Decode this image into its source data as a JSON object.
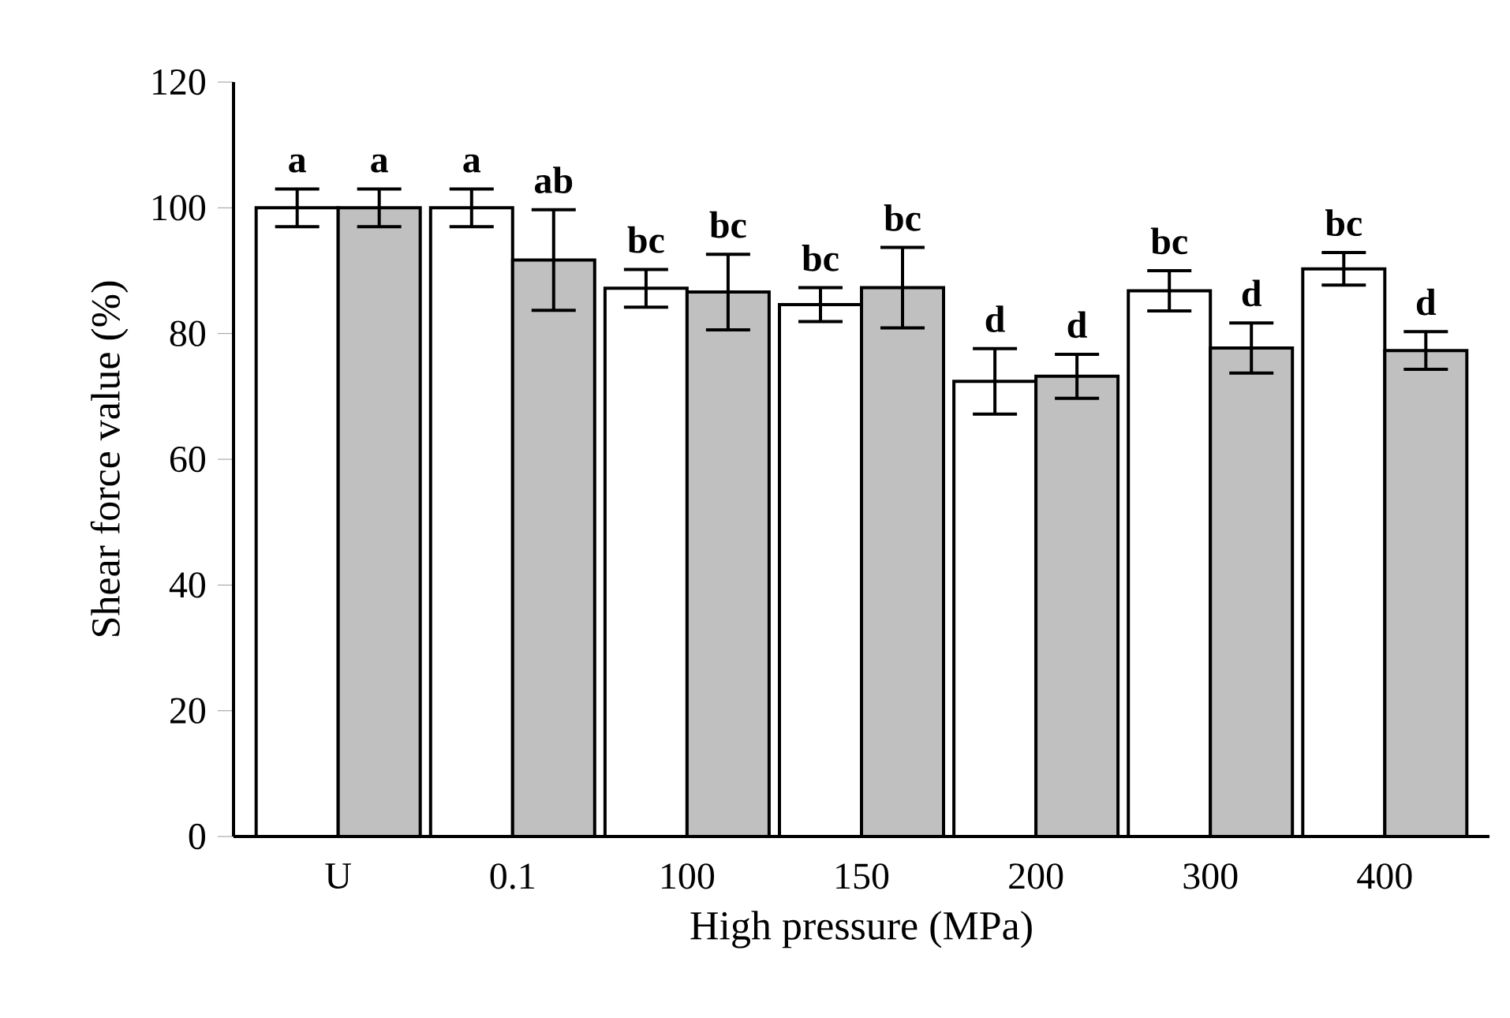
{
  "chart_data": {
    "type": "bar",
    "xlabel": "High pressure (MPa)",
    "ylabel": "Shear force value (%)",
    "categories": [
      "U",
      "0.1",
      "100",
      "150",
      "200",
      "300",
      "400"
    ],
    "series": [
      {
        "color": "#ffffff",
        "values": [
          100,
          100,
          87.2,
          84.6,
          72.4,
          86.8,
          90.3
        ],
        "errors": [
          3,
          3,
          3,
          2.7,
          5.2,
          3.2,
          2.6
        ]
      },
      {
        "color": "#c0c0c0",
        "values": [
          100,
          91.7,
          86.6,
          87.3,
          73.2,
          77.7,
          77.3
        ],
        "errors": [
          3,
          8,
          6,
          6.4,
          3.5,
          4,
          3
        ]
      }
    ],
    "ylim": [
      0,
      120
    ],
    "yticks": [
      0,
      20,
      40,
      60,
      80,
      100,
      120
    ],
    "grid": false,
    "annotations": [
      "a",
      "a",
      "a",
      "ab",
      "bc",
      "bc",
      "bc",
      "bc",
      "d",
      "d",
      "bc",
      "d",
      "bc",
      "d"
    ]
  }
}
